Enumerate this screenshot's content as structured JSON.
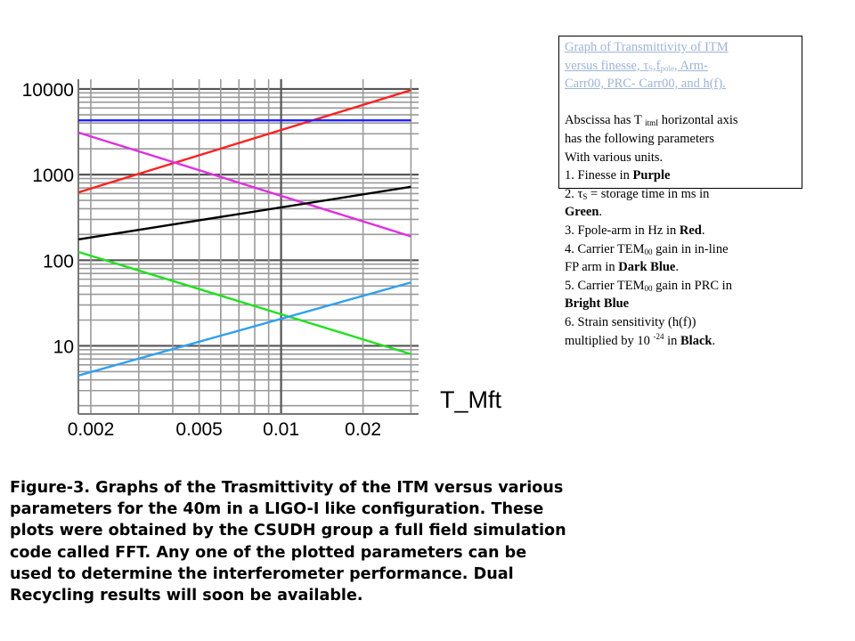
{
  "chart_data": {
    "type": "line",
    "xscale": "log",
    "yscale": "log",
    "xlim": [
      0.0018,
      0.032
    ],
    "ylim": [
      1.6,
      13000
    ],
    "x_ticks": [
      {
        "value": 0.002,
        "label": "0.002"
      },
      {
        "value": 0.005,
        "label": "0.005"
      },
      {
        "value": 0.01,
        "label": "0.01"
      },
      {
        "value": 0.02,
        "label": "0.02"
      }
    ],
    "y_ticks": [
      {
        "value": 10000,
        "label": "10000"
      },
      {
        "value": 1000,
        "label": "1000"
      },
      {
        "value": 100,
        "label": "100"
      },
      {
        "value": 10,
        "label": "10"
      }
    ],
    "xlabel": "T_Mft",
    "grid": true,
    "series": [
      {
        "color": "#ff2020",
        "x": [
          0.0018,
          0.03
        ],
        "y": [
          620,
          9700
        ]
      },
      {
        "color": "#2020ff",
        "x": [
          0.0018,
          0.03
        ],
        "y": [
          4300,
          4300
        ]
      },
      {
        "color": "#e030e0",
        "x": [
          0.0018,
          0.03
        ],
        "y": [
          3100,
          190
        ]
      },
      {
        "color": "#000000",
        "x": [
          0.0018,
          0.03
        ],
        "y": [
          175,
          720
        ]
      },
      {
        "color": "#20e020",
        "x": [
          0.0018,
          0.03
        ],
        "y": [
          125,
          8
        ]
      },
      {
        "color": "#30a0f0",
        "x": [
          0.0018,
          0.03
        ],
        "y": [
          4.5,
          55
        ]
      }
    ]
  },
  "legend": {
    "link_line1": "Graph of Transmittivity of ITM",
    "link_line2a": "versus finesse, ",
    "link_tau": "τ",
    "link_tau_sub": "S",
    "link_line2b": ",f",
    "link_pole_sub": "pole",
    "link_line2c": ", Arm-",
    "link_line3": "Carr00, PRC- Carr00, and h(f).",
    "abscissa_a": "Abscissa has T ",
    "abscissa_sub": "itmI",
    "abscissa_b": "  horizontal axis",
    "params_line": "has  the following parameters",
    "units_line": "With various units.",
    "item1_text": "1. Finesse in ",
    "item1_color": "Purple",
    "item2_a": "2. ",
    "item2_tau": "τ",
    "item2_sub": "S",
    "item2_b": " = storage time in ms in",
    "item2_color": "Green",
    "item2_end": ".",
    "item3_text": "3. Fpole-arm in Hz in ",
    "item3_color": "Red",
    "item3_end": ".",
    "item4_a": "4. Carrier TEM",
    "item4_sub": "00",
    "item4_b": " gain in in-line",
    "item4_c": "FP arm in ",
    "item4_color": "Dark Blue",
    "item4_end": ".",
    "item5_a": "5. Carrier TEM",
    "item5_sub": "00",
    "item5_b": " gain in PRC in",
    "item5_color": "Bright Blue",
    "item6_a": "6. Strain sensitivity  (h(f))",
    "item6_b": "multiplied by 10 ",
    "item6_sup": "-24",
    "item6_c": " in ",
    "item6_color": "Black",
    "item6_end": "."
  },
  "caption": {
    "line1": "Figure-3.  Graphs of the Trasmittivity of the ITM versus various",
    "line2": "parameters for the 40m in a LIGO-I like configuration.  These",
    "line3": "plots were obtained by the CSUDH group a full field simulation",
    "line4": "code called  FFT. Any one of the plotted parameters can be",
    "line5": "used to   determine the interferometer performance. Dual",
    "line6": "Recycling  results will soon be available."
  }
}
